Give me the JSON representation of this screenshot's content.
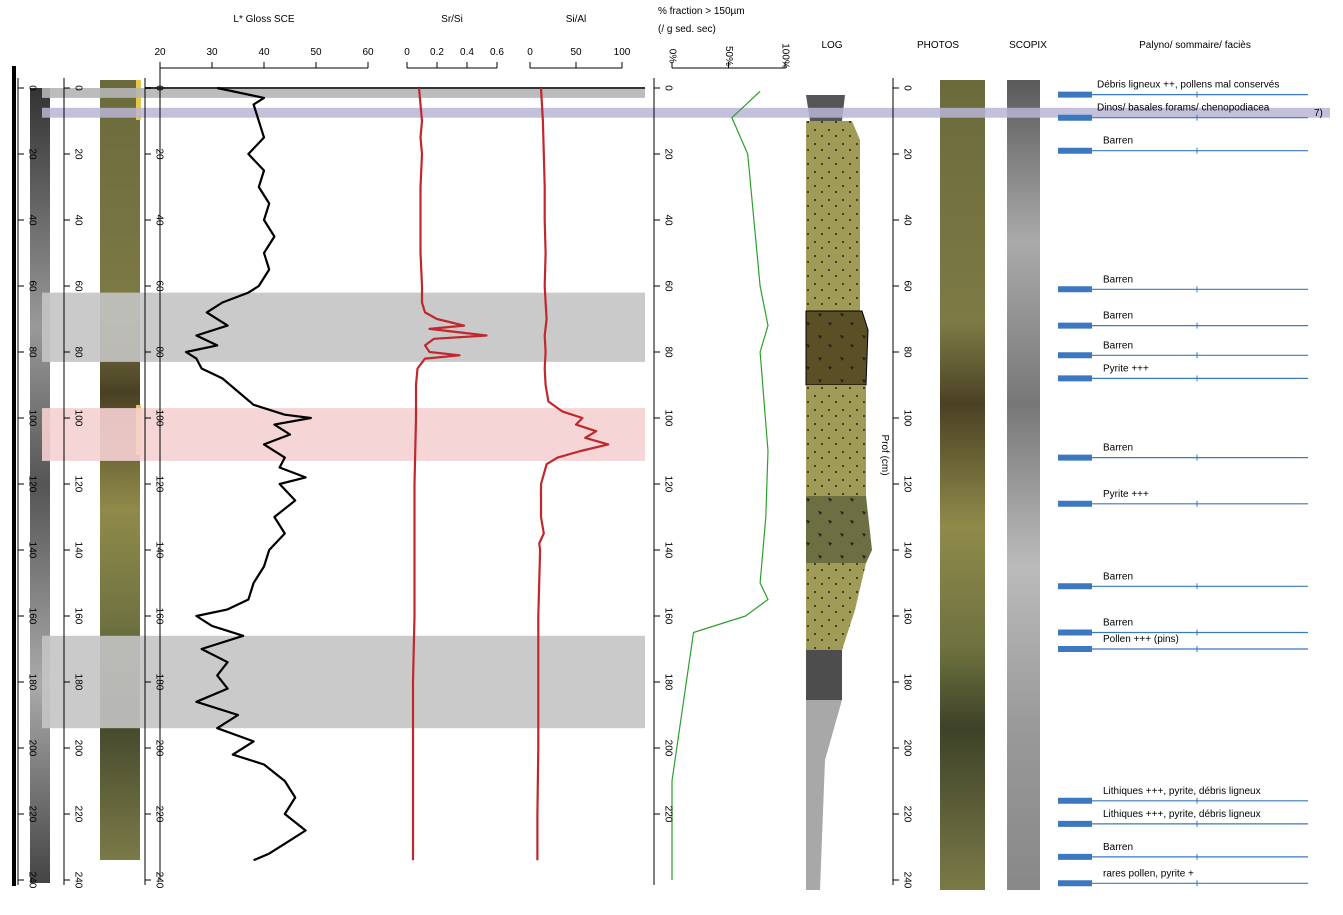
{
  "chart_data": [
    {
      "type": "line",
      "title": "L* Gloss SCE",
      "color": "#000000",
      "xlim": [
        20,
        60
      ],
      "xticks": [
        20,
        30,
        40,
        50,
        60
      ],
      "ylim": [
        0,
        240
      ],
      "depths": [
        0,
        3,
        5,
        10,
        15,
        20,
        25,
        30,
        35,
        40,
        45,
        50,
        55,
        60,
        62,
        65,
        68,
        72,
        75,
        78,
        80,
        82,
        85,
        88,
        92,
        96,
        99,
        100,
        102,
        105,
        108,
        112,
        115,
        118,
        120,
        125,
        130,
        135,
        140,
        145,
        150,
        155,
        158,
        160,
        163,
        166,
        170,
        174,
        178,
        182,
        186,
        190,
        194,
        198,
        202,
        205,
        210,
        215,
        220,
        225,
        228,
        232,
        234
      ],
      "values": [
        31,
        40,
        38,
        39,
        40,
        37,
        40,
        39,
        41,
        40,
        42,
        40,
        41,
        39,
        37,
        32,
        29,
        33,
        27,
        31,
        25,
        27,
        28,
        32,
        35,
        38,
        44,
        49,
        42,
        45,
        40,
        44,
        43,
        48,
        43,
        46,
        42,
        44,
        41,
        40,
        38,
        37,
        33,
        27,
        30,
        36,
        28,
        33,
        31,
        33,
        27,
        35,
        31,
        38,
        34,
        40,
        44,
        46,
        44,
        48,
        45,
        41,
        38
      ]
    },
    {
      "type": "line",
      "title": "Sr/Si",
      "color": "#c0282d",
      "xlim": [
        0,
        0.6
      ],
      "xticks": [
        0,
        0.2,
        0.4,
        0.6
      ],
      "ylim": [
        0,
        240
      ],
      "depths": [
        0,
        5,
        10,
        15,
        20,
        30,
        40,
        50,
        60,
        65,
        68,
        70,
        72,
        73,
        75,
        76,
        78,
        80,
        81,
        82,
        85,
        90,
        100,
        120,
        140,
        160,
        180,
        200,
        220,
        234
      ],
      "values": [
        0.08,
        0.09,
        0.1,
        0.09,
        0.1,
        0.09,
        0.09,
        0.09,
        0.1,
        0.1,
        0.12,
        0.2,
        0.38,
        0.15,
        0.53,
        0.18,
        0.12,
        0.15,
        0.35,
        0.12,
        0.07,
        0.06,
        0.06,
        0.05,
        0.05,
        0.05,
        0.04,
        0.04,
        0.04,
        0.04
      ]
    },
    {
      "type": "line",
      "title": "Si/Al",
      "color": "#c0282d",
      "xlim": [
        0,
        100
      ],
      "xticks": [
        0,
        50,
        100
      ],
      "ylim": [
        0,
        240
      ],
      "depths": [
        0,
        10,
        20,
        30,
        40,
        50,
        60,
        65,
        70,
        75,
        80,
        85,
        90,
        95,
        98,
        100,
        102,
        104,
        106,
        108,
        110,
        112,
        114,
        118,
        120,
        130,
        135,
        138,
        140,
        160,
        180,
        200,
        220,
        234
      ],
      "values": [
        12,
        14,
        15,
        16,
        16,
        17,
        16,
        17,
        18,
        16,
        17,
        16,
        17,
        20,
        35,
        57,
        50,
        72,
        60,
        85,
        55,
        30,
        18,
        14,
        12,
        12,
        15,
        10,
        11,
        9,
        9,
        9,
        8,
        8
      ]
    },
    {
      "type": "line",
      "title": "% fraction > 150µm",
      "subtitle": "(/ g sed. sec)",
      "color": "#2ca02c",
      "xlim": [
        0,
        100
      ],
      "xticks": [
        {
          "value": 0,
          "label": "0%"
        },
        {
          "value": 50,
          "label": "50%"
        },
        {
          "value": 100,
          "label": "100%"
        }
      ],
      "ylim": [
        0,
        240
      ],
      "yticks": [
        0,
        20,
        40,
        60,
        80,
        100,
        120,
        140,
        160,
        180,
        200,
        220
      ],
      "depths": [
        1,
        9,
        20,
        60,
        72,
        80,
        110,
        130,
        150,
        155,
        160,
        165,
        210,
        240
      ],
      "values": [
        78,
        53,
        67,
        78,
        85,
        78,
        85,
        83,
        78,
        85,
        65,
        19,
        0,
        0
      ]
    }
  ],
  "depth_axis": {
    "label": "Prof (cm)",
    "ticks": [
      0,
      20,
      40,
      60,
      80,
      100,
      120,
      140,
      160,
      180,
      200,
      220,
      240
    ]
  },
  "bands": [
    {
      "from": 0,
      "to": 3,
      "color": "#b5b5b5"
    },
    {
      "from": 6,
      "to": 9,
      "color": "#b9b5d6"
    },
    {
      "from": 62,
      "to": 83,
      "color": "#c4c4c4"
    },
    {
      "from": 97,
      "to": 113,
      "color": "#f5d0d3"
    },
    {
      "from": 166,
      "to": 194,
      "color": "#c4c4c4"
    }
  ],
  "columns": {
    "log": "LOG",
    "photos": "PHOTOS",
    "scopix": "SCOPIX",
    "palyno": "Palyno/ sommaire/ faciès"
  },
  "annotations": [
    {
      "label": "Débris ligneux ++, pollens mal conservés",
      "depth": 2
    },
    {
      "label": "Dinos/ basales forams/ chenopodiacea",
      "depth": 9
    },
    {
      "label": "Barren",
      "depth": 19
    },
    {
      "label": "Barren",
      "depth": 61
    },
    {
      "label": "Barren",
      "depth": 72
    },
    {
      "label": "Barren",
      "depth": 81
    },
    {
      "label": "Pyrite +++",
      "depth": 88
    },
    {
      "label": "Barren",
      "depth": 112
    },
    {
      "label": "Pyrite +++",
      "depth": 126
    },
    {
      "label": "Barren",
      "depth": 151
    },
    {
      "label": "Barren",
      "depth": 165
    },
    {
      "label": "Pollen +++ (pins)",
      "depth": 170
    },
    {
      "label": "Lithiques +++, pyrite, débris ligneux",
      "depth": 216
    },
    {
      "label": "Lithiques +++, pyrite, débris ligneux",
      "depth": 223
    },
    {
      "label": "Barren",
      "depth": 233
    },
    {
      "label": "rares pollen, pyrite +",
      "depth": 241
    }
  ],
  "edge_note": "7)"
}
